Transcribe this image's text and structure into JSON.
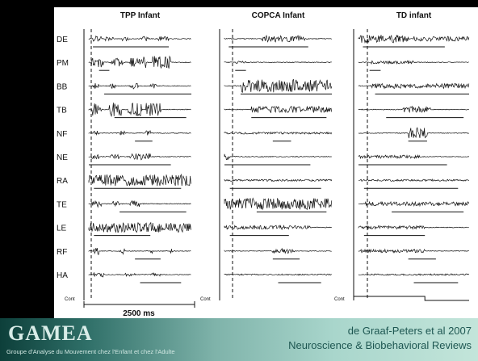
{
  "panels": [
    {
      "title": "TPP Infant",
      "x0": 110,
      "x1": 237
    },
    {
      "title": "COPCA Infant",
      "x0": 278,
      "x1": 411
    },
    {
      "title": "TD infant",
      "x0": 444,
      "x1": 581
    }
  ],
  "muscles": [
    "DE",
    "PM",
    "BB",
    "TB",
    "NF",
    "NE",
    "RA",
    "TE",
    "LE",
    "RF",
    "HA"
  ],
  "cont_label": "Cont",
  "scale_label": "2500 ms",
  "footer": {
    "logo": "GAMEA",
    "tagline": "Groupe d'Analyse du Mouvement chez l'Enfant et chez l'Adulte",
    "citation_line1": "de Graaf-Peters et al 2007",
    "citation_line2": "Neuroscience & Biobehavioral Reviews"
  },
  "colors": {
    "trace": "#111111",
    "background": "#000000",
    "figure": "#ffffff",
    "footer_text": "#1e5752"
  }
}
